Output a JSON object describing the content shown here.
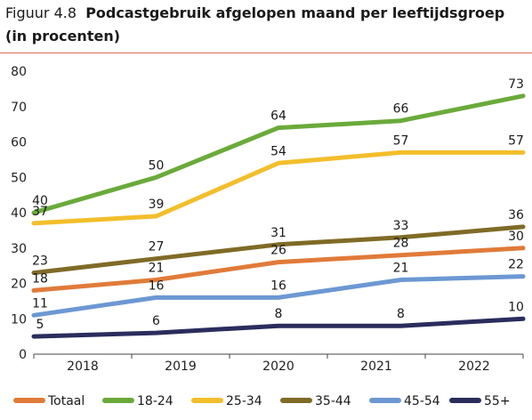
{
  "figure": {
    "label": "Figuur 4.8",
    "title_line1": "Podcastgebruik afgelopen maand per leeftijdsgroep",
    "title_line2": "(in procenten)"
  },
  "chart_data": {
    "type": "line",
    "x": [
      "2018",
      "2019",
      "2020",
      "2021",
      "2022"
    ],
    "ylim": [
      0,
      80
    ],
    "yticks": [
      0,
      10,
      20,
      30,
      40,
      50,
      60,
      70,
      80
    ],
    "grid": false,
    "legend_position": "bottom",
    "series": [
      {
        "name": "Totaal",
        "color": "#e07b39",
        "values": [
          18,
          21,
          26,
          28,
          30
        ]
      },
      {
        "name": "18-24",
        "color": "#6aaa3a",
        "values": [
          40,
          50,
          64,
          66,
          73
        ]
      },
      {
        "name": "25-34",
        "color": "#f2be2b",
        "values": [
          37,
          39,
          54,
          57,
          57
        ]
      },
      {
        "name": "35-44",
        "color": "#7f6b26",
        "values": [
          23,
          27,
          31,
          33,
          36
        ]
      },
      {
        "name": "45-54",
        "color": "#6c98d3",
        "values": [
          11,
          16,
          16,
          21,
          22
        ]
      },
      {
        "name": "55+",
        "color": "#2a2d5c",
        "values": [
          5,
          6,
          8,
          8,
          10
        ]
      }
    ]
  }
}
